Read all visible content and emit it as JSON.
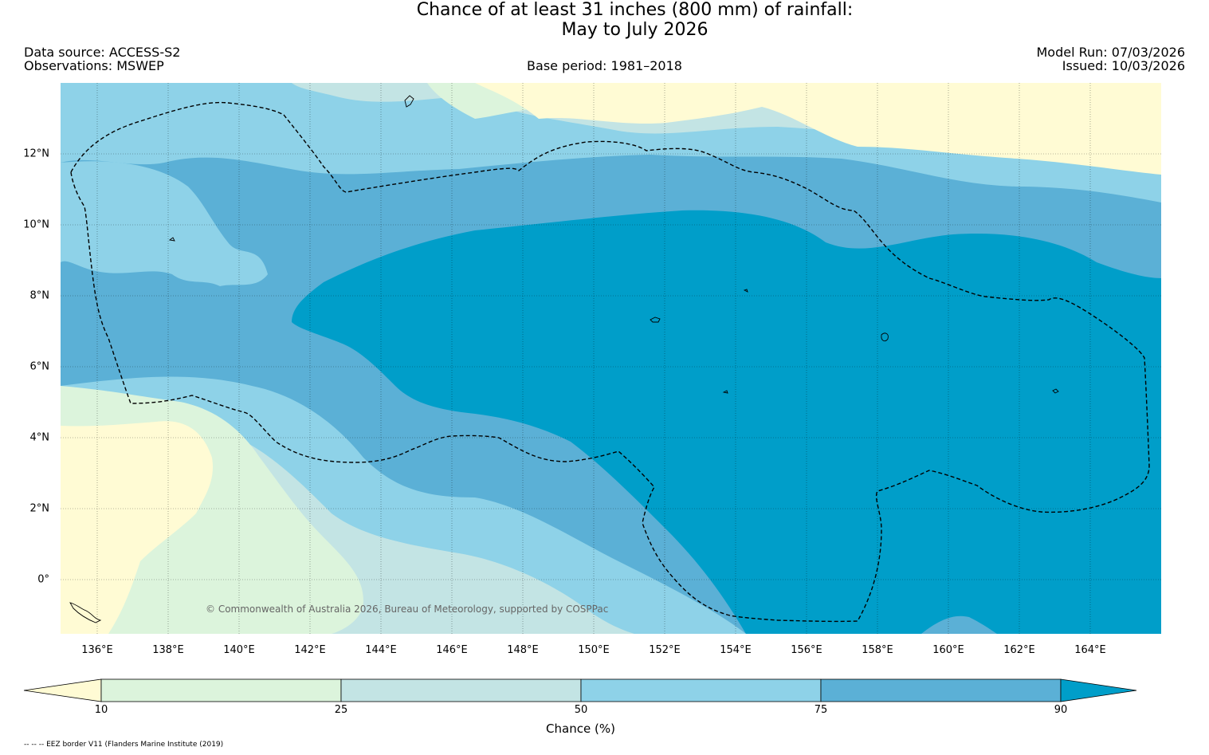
{
  "header": {
    "title": "Chance of at least 31 inches (800  mm) of rainfall:\nMay to July 2026",
    "data_source": "Data source: ACCESS-S2",
    "observations": "Observations: MSWEP",
    "base_period": "Base period: 1981–2018",
    "model_run": "Model Run: 07/03/2026",
    "issued": "Issued: 10/03/2026"
  },
  "map": {
    "lon_labels": [
      "136°E",
      "138°E",
      "140°E",
      "142°E",
      "144°E",
      "146°E",
      "148°E",
      "150°E",
      "152°E",
      "154°E",
      "156°E",
      "158°E",
      "160°E",
      "162°E",
      "164°E"
    ],
    "lat_labels": [
      "12°N",
      "10°N",
      "8°N",
      "6°N",
      "4°N",
      "2°N",
      "0°"
    ],
    "copyright": "© Commonwealth of Australia 2026, Bureau of Meteorology, supported by COSPPac",
    "eez_note": "-- -- -- EEZ border V11 (Flanders Marine Institute (2019)"
  },
  "colorbar": {
    "title": "Chance (%)",
    "tick_labels": [
      "10",
      "25",
      "50",
      "75",
      "90"
    ],
    "colors": [
      "#fffbd4",
      "#dcf4dc",
      "#c3e4e4",
      "#8ed2e8",
      "#5bb0d6",
      "#009ec9"
    ]
  }
}
